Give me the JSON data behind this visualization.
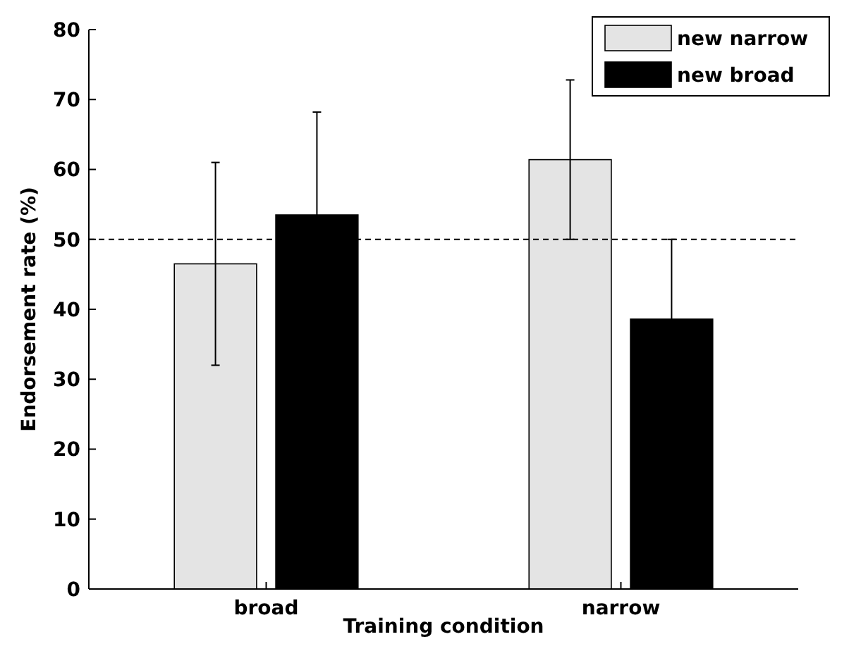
{
  "chart_data": {
    "type": "bar",
    "xlabel": "Training condition",
    "ylabel": "Endorsement rate (%)",
    "categories": [
      "broad",
      "narrow"
    ],
    "series": [
      {
        "name": "new narrow",
        "color": "#e4e4e4",
        "values": [
          46.5,
          61.4
        ],
        "errors": [
          14.5,
          11.4
        ]
      },
      {
        "name": "new broad",
        "color": "#000000",
        "values": [
          53.5,
          38.6
        ],
        "errors": [
          14.7,
          11.4
        ]
      }
    ],
    "ylim": [
      0,
      80
    ],
    "yticks": [
      0,
      10,
      20,
      30,
      40,
      50,
      60,
      70,
      80
    ],
    "ref_lines": [
      {
        "axis": "y",
        "value": 50,
        "line_style": "dashed",
        "color": "#000000"
      }
    ],
    "legend": "top right",
    "grid": false
  }
}
